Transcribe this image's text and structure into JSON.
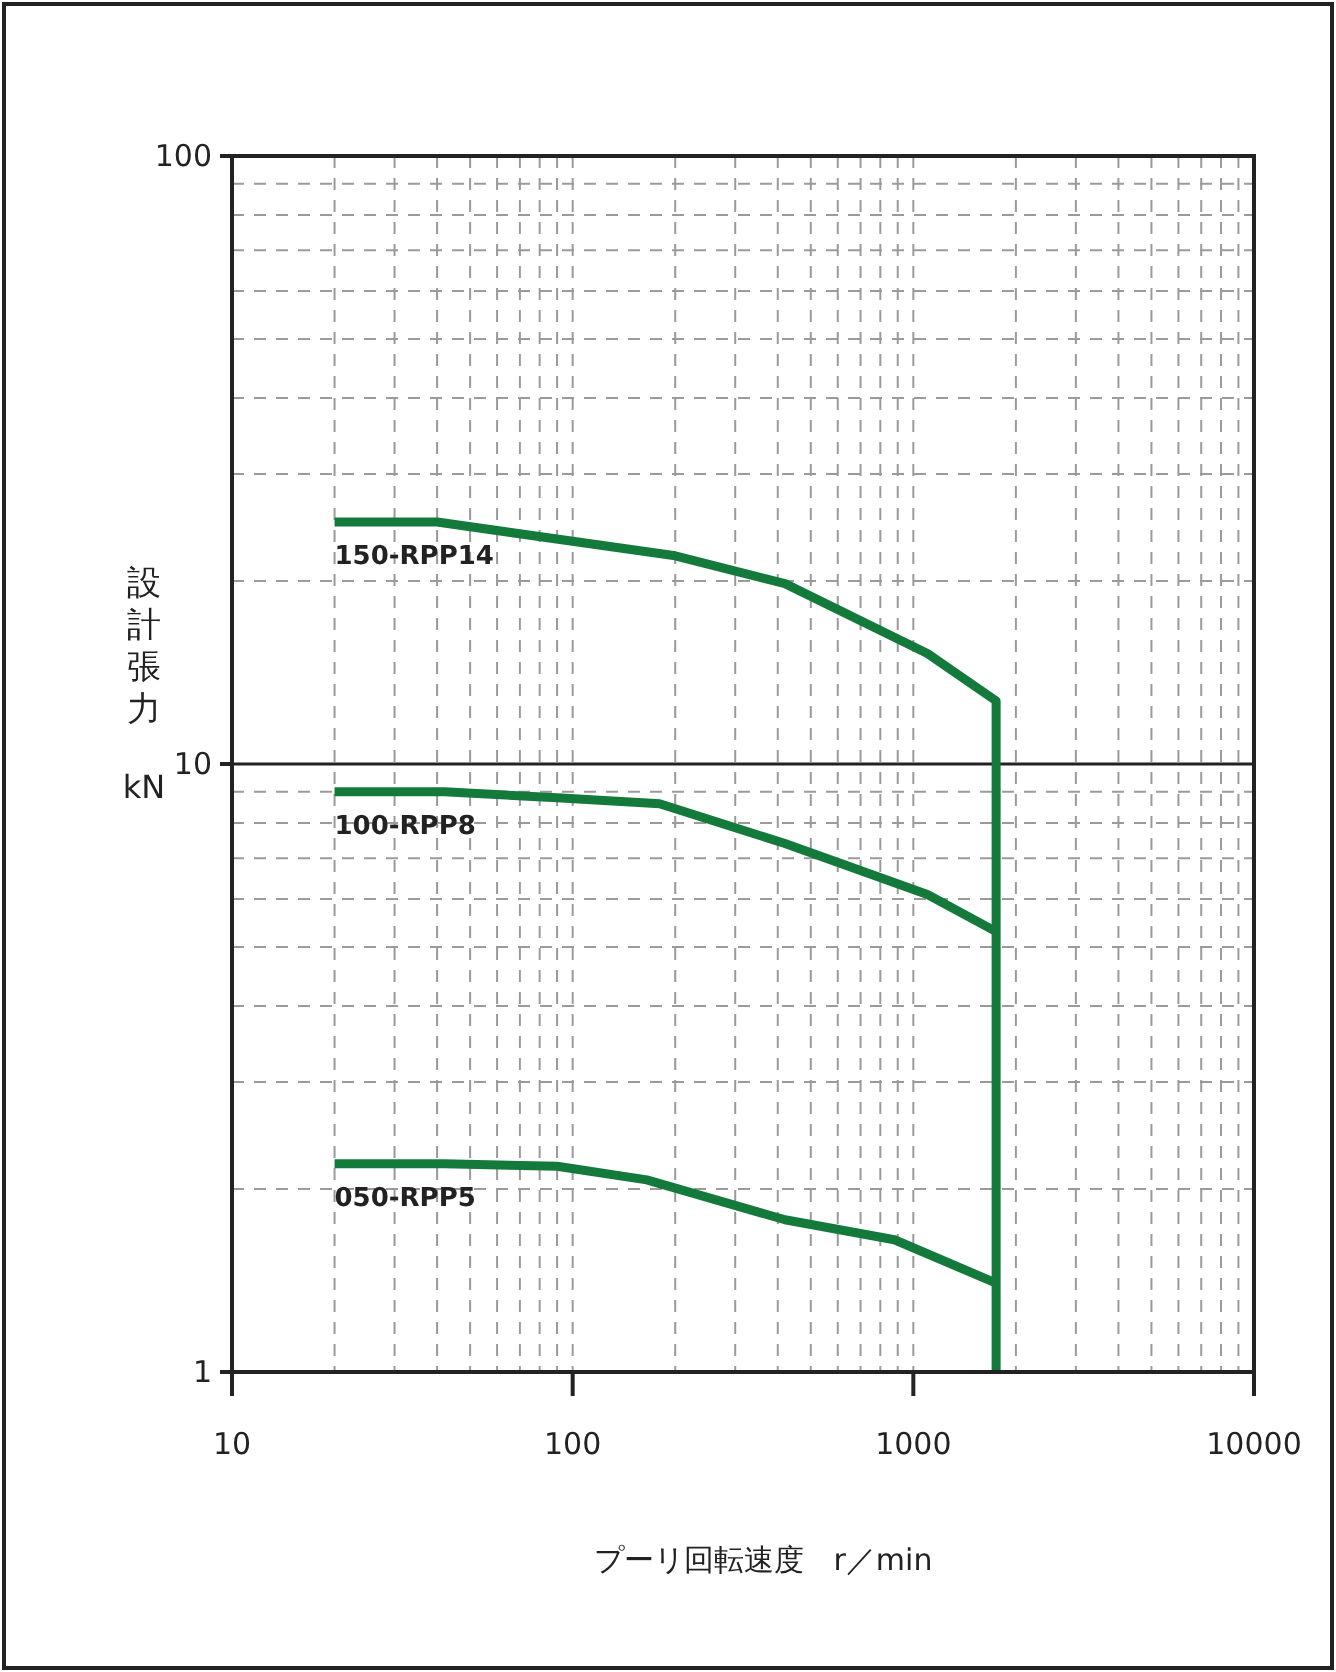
{
  "chart_data": {
    "type": "line",
    "xlabel": "プーリ回転速度　r／min",
    "ylabel": "設計張力 kN",
    "log": "xy",
    "xlim": [
      10,
      10000
    ],
    "ylim": [
      1,
      100
    ],
    "xticks": [
      10,
      100,
      1000,
      10000
    ],
    "yticks": [
      1,
      10,
      100
    ],
    "grid": true,
    "ref_lines": [
      {
        "axis": "y",
        "value": 10,
        "color": "#222222",
        "line_style": "solid"
      }
    ],
    "series": [
      {
        "name": "150-RPP14",
        "color": "#137a3b",
        "x": [
          20,
          40,
          200,
          420,
          1100,
          1750,
          1750
        ],
        "values": [
          25,
          25,
          22,
          19.8,
          15.2,
          12.7,
          1
        ]
      },
      {
        "name": "100-RPP8",
        "color": "#137a3b",
        "x": [
          20,
          42,
          90,
          180,
          420,
          1100,
          1750
        ],
        "values": [
          9,
          9,
          8.8,
          8.6,
          7.4,
          6.1,
          5.3
        ]
      },
      {
        "name": "050-RPP5",
        "color": "#137a3b",
        "x": [
          20,
          42,
          90,
          165,
          420,
          880,
          1750
        ],
        "values": [
          2.2,
          2.2,
          2.18,
          2.07,
          1.78,
          1.65,
          1.4
        ]
      }
    ]
  }
}
